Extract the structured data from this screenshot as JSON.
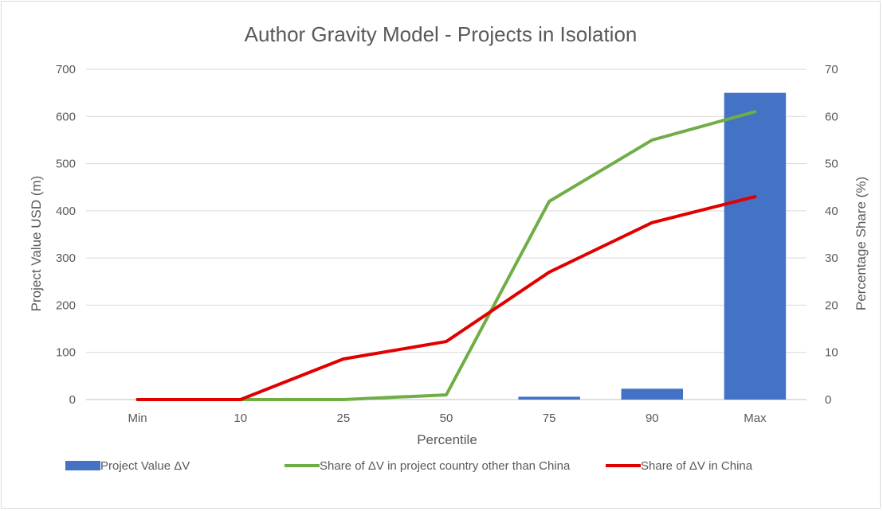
{
  "chart_data": {
    "type": "bar+line",
    "title": "Author Gravity Model - Projects in Isolation",
    "xlabel": "Percentile",
    "ylabel_left": "Project Value USD (m)",
    "ylabel_right": "Percentage Share (%)",
    "categories": [
      "Min",
      "10",
      "25",
      "50",
      "75",
      "90",
      "Max"
    ],
    "y_left_ticks": [
      0,
      100,
      200,
      300,
      400,
      500,
      600,
      700
    ],
    "y_right_ticks": [
      0,
      10,
      20,
      30,
      40,
      50,
      60,
      70
    ],
    "ylim_left": [
      0,
      700
    ],
    "ylim_right": [
      0,
      70
    ],
    "grid": true,
    "legend_position": "bottom",
    "series": [
      {
        "name": "Project Value ΔV",
        "type": "bar",
        "axis": "left",
        "color": "#4472C4",
        "values": [
          0,
          0,
          0,
          0,
          6,
          23,
          650
        ]
      },
      {
        "name": "Share of  ΔV in project country other than China",
        "type": "line",
        "axis": "right",
        "color": "#70AD47",
        "values": [
          0,
          0,
          0,
          1,
          42,
          55,
          61
        ]
      },
      {
        "name": "Share of  ΔV in China",
        "type": "line",
        "axis": "right",
        "color": "#E00000",
        "values": [
          0,
          0,
          8.6,
          12.3,
          27,
          37.5,
          43
        ]
      }
    ]
  }
}
